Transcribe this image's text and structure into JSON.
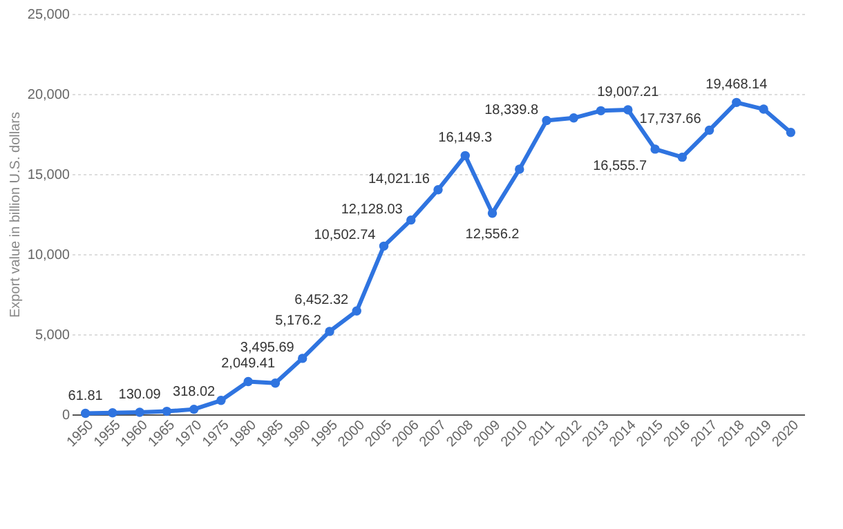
{
  "chart_data": {
    "type": "line",
    "ylabel": "Export value in billion U.S. dollars",
    "categories": [
      "1950",
      "1955",
      "1960",
      "1965",
      "1970",
      "1975",
      "1980",
      "1985",
      "1990",
      "1995",
      "2000",
      "2005",
      "2006",
      "2007",
      "2008",
      "2009",
      "2010",
      "2011",
      "2012",
      "2013",
      "2014",
      "2015",
      "2016",
      "2017",
      "2018",
      "2019",
      "2020"
    ],
    "series": [
      {
        "color": "#2f74e0",
        "values": [
          61.81,
          95,
          130.09,
          190,
          318.02,
          870,
          2049.41,
          1950,
          3495.69,
          5176.2,
          6452.32,
          10502.74,
          12128.03,
          14021.16,
          16149.3,
          12556.2,
          15300,
          18339.8,
          18500,
          18950,
          19007.21,
          16555.7,
          16050,
          17737.66,
          19468.14,
          19050,
          17600
        ],
        "value_labels": [
          "61.81",
          null,
          "130.09",
          null,
          "318.02",
          null,
          "2,049.41",
          null,
          "3,495.69",
          "5,176.2",
          "6,452.32",
          "10,502.74",
          "12,128.03",
          "14,021.16",
          "16,149.3",
          "12,556.2",
          null,
          "18,339.8",
          null,
          null,
          "19,007.21",
          "16,555.7",
          null,
          "17,737.66",
          "19,468.14",
          null,
          null
        ]
      }
    ],
    "ylim": [
      0,
      25000
    ],
    "yticks": [
      {
        "value": 0,
        "label": "0"
      },
      {
        "value": 5000,
        "label": "5,000"
      },
      {
        "value": 10000,
        "label": "10,000"
      },
      {
        "value": 15000,
        "label": "15,000"
      },
      {
        "value": 20000,
        "label": "20,000"
      },
      {
        "value": 25000,
        "label": "25,000"
      }
    ],
    "grid": "y",
    "marker": "circle",
    "line_style": "solid"
  }
}
